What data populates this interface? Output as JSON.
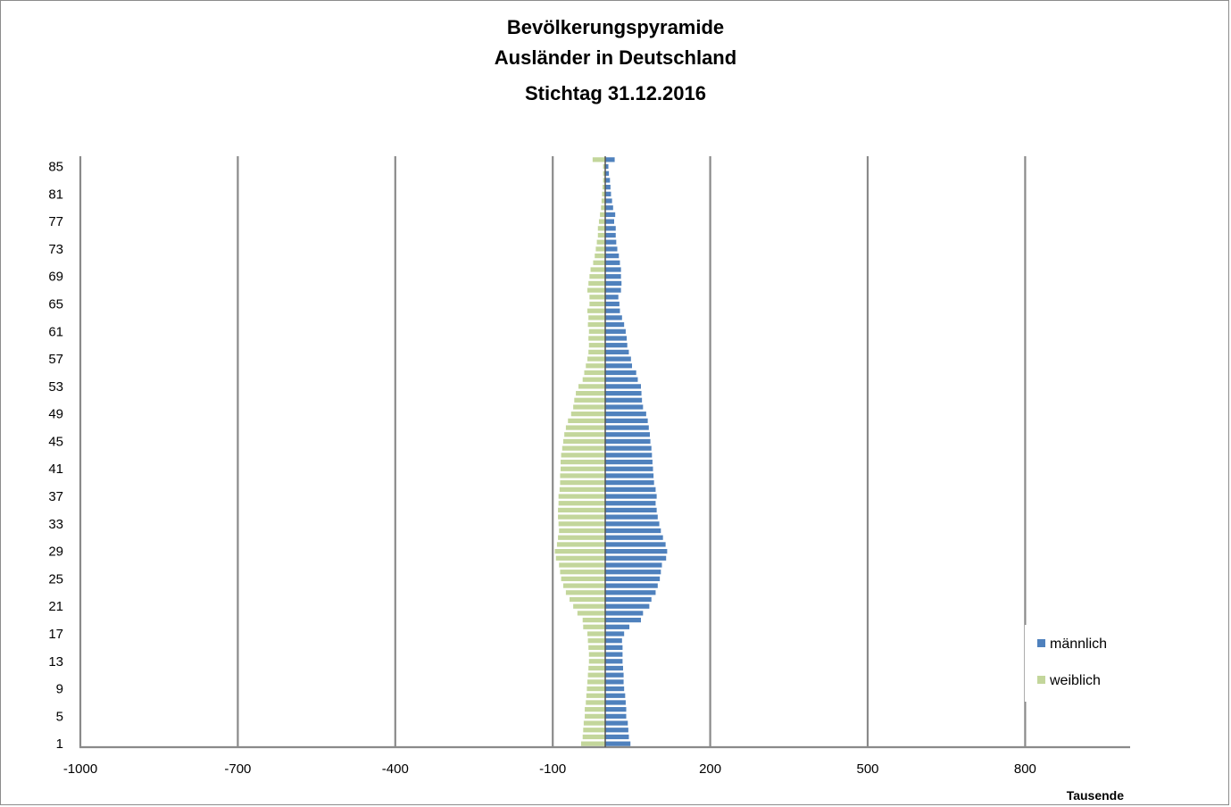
{
  "chart_data": {
    "type": "bar",
    "orientation": "horizontal-pyramid",
    "title": [
      "Bevölkerungspyramide",
      "Ausländer in Deutschland",
      "Stichtag 31.12.2016"
    ],
    "x_unit_label": "Tausende",
    "xlim": [
      -1000,
      1000
    ],
    "x_ticks": [
      -1000,
      -700,
      -400,
      -100,
      200,
      500,
      800
    ],
    "grid": "vertical",
    "legend_position": "right",
    "y_tick_labels": [
      "1",
      "5",
      "9",
      "13",
      "17",
      "21",
      "25",
      "29",
      "33",
      "37",
      "41",
      "45",
      "49",
      "53",
      "57",
      "61",
      "65",
      "69",
      "73",
      "77",
      "81",
      "85"
    ],
    "categories": [
      "1",
      "2",
      "3",
      "4",
      "5",
      "6",
      "7",
      "8",
      "9",
      "10",
      "11",
      "12",
      "13",
      "14",
      "15",
      "16",
      "17",
      "18",
      "19",
      "20",
      "21",
      "22",
      "23",
      "24",
      "25",
      "26",
      "27",
      "28",
      "29",
      "30",
      "31",
      "32",
      "33",
      "34",
      "35",
      "36",
      "37",
      "38",
      "39",
      "40",
      "41",
      "42",
      "43",
      "44",
      "45",
      "46",
      "47",
      "48",
      "49",
      "50",
      "51",
      "52",
      "53",
      "54",
      "55",
      "56",
      "57",
      "58",
      "59",
      "60",
      "61",
      "62",
      "63",
      "64",
      "65",
      "66",
      "67",
      "68",
      "69",
      "70",
      "71",
      "72",
      "73",
      "74",
      "75",
      "76",
      "77",
      "78",
      "79",
      "80",
      "81",
      "82",
      "83",
      "84",
      "85",
      "86"
    ],
    "series": [
      {
        "name": "männlich",
        "color": "#4f81bd",
        "values": [
          48,
          45,
          44,
          43,
          40,
          40,
          39,
          38,
          36,
          35,
          35,
          34,
          33,
          33,
          33,
          32,
          36,
          46,
          68,
          72,
          84,
          88,
          96,
          100,
          104,
          106,
          108,
          116,
          118,
          115,
          110,
          106,
          103,
          100,
          98,
          96,
          98,
          96,
          93,
          92,
          91,
          90,
          89,
          88,
          86,
          85,
          83,
          81,
          78,
          72,
          70,
          69,
          68,
          62,
          59,
          51,
          49,
          45,
          42,
          41,
          39,
          36,
          32,
          28,
          27,
          25,
          30,
          31,
          30,
          30,
          28,
          26,
          23,
          21,
          20,
          20,
          17,
          19,
          15,
          13,
          11,
          10,
          9,
          7,
          6,
          18
        ]
      },
      {
        "name": "weiblich",
        "color": "#c3d69b",
        "values": [
          46,
          43,
          42,
          41,
          39,
          39,
          37,
          36,
          35,
          34,
          33,
          32,
          31,
          31,
          32,
          33,
          34,
          42,
          43,
          53,
          61,
          68,
          75,
          80,
          84,
          86,
          88,
          94,
          96,
          92,
          90,
          88,
          89,
          90,
          90,
          89,
          89,
          87,
          86,
          86,
          85,
          85,
          84,
          82,
          80,
          78,
          75,
          71,
          65,
          61,
          59,
          56,
          51,
          43,
          40,
          37,
          34,
          32,
          31,
          32,
          31,
          33,
          32,
          34,
          30,
          30,
          34,
          32,
          30,
          28,
          23,
          20,
          18,
          16,
          14,
          14,
          12,
          10,
          8,
          7,
          6,
          5,
          4,
          4,
          4,
          24
        ]
      }
    ]
  }
}
